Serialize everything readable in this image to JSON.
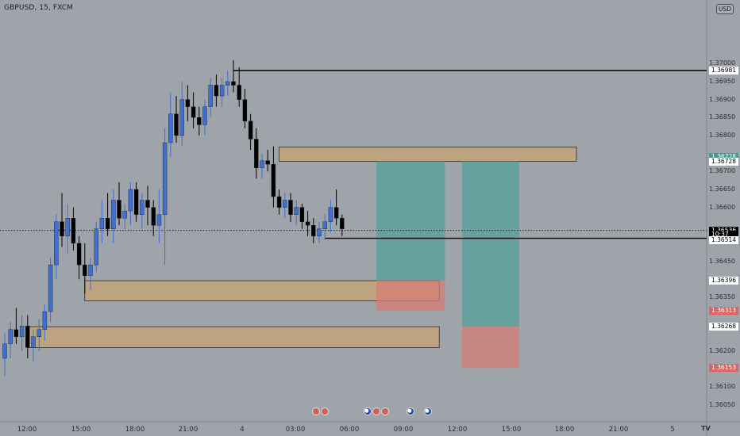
{
  "header": {
    "symbol": "GBPUSD, 15, FXCM",
    "currency": "USD"
  },
  "logo": "TV",
  "price_axis": {
    "labels": [
      "1.37000",
      "1.36950",
      "1.36900",
      "1.36850",
      "1.36800",
      "1.36700",
      "1.36650",
      "1.36600",
      "1.36450",
      "1.36350",
      "1.36200",
      "1.36100",
      "1.36050"
    ],
    "values": [
      1.37,
      1.3695,
      1.369,
      1.3685,
      1.368,
      1.367,
      1.3665,
      1.366,
      1.3645,
      1.3635,
      1.362,
      1.361,
      1.3605
    ]
  },
  "time_axis": {
    "labels": [
      "12:00",
      "15:00",
      "18:00",
      "21:00",
      "4",
      "03:00",
      "06:00",
      "09:00",
      "12:00",
      "15:00",
      "18:00",
      "21:00",
      "5"
    ]
  },
  "tags": [
    {
      "text": "1.36981",
      "style": "white",
      "price": 1.36981
    },
    {
      "text": "1.36728",
      "style": "teal",
      "price": 1.3674
    },
    {
      "text": "1.36728",
      "style": "white",
      "price": 1.36728
    },
    {
      "text": "1.36536",
      "style": "black",
      "price": 1.36536
    },
    {
      "text": "10:37",
      "style": "black",
      "price": 1.36525
    },
    {
      "text": "1.36514",
      "style": "white",
      "price": 1.36508
    },
    {
      "text": "1.36396",
      "style": "white",
      "price": 1.36396
    },
    {
      "text": "1.36313",
      "style": "red",
      "price": 1.36313
    },
    {
      "text": "1.36268",
      "style": "white",
      "price": 1.36268
    },
    {
      "text": "1.36153",
      "style": "red",
      "price": 1.36153
    }
  ],
  "events": [
    {
      "type": "red",
      "bar": 54.5
    },
    {
      "type": "red",
      "bar": 56
    },
    {
      "type": "us",
      "bar": 63.5
    },
    {
      "type": "red",
      "bar": 65
    },
    {
      "type": "red",
      "bar": 66.5
    },
    {
      "type": "us",
      "bar": 71
    },
    {
      "type": "us",
      "bar": 74
    }
  ],
  "colors": {
    "background": "#9fa4aa",
    "bull": "#3f6fd1",
    "bear": "#000000",
    "zone": "#c7a473",
    "long_tp": "#4f9f9a",
    "long_sl": "#d77a72"
  },
  "chart_data": {
    "type": "candlestick",
    "title": "GBPUSD, 15, FXCM",
    "ylim": [
      1.3603,
      1.3708
    ],
    "current_price": 1.36536,
    "candles": [
      [
        1.3618,
        1.3625,
        1.3613,
        1.3622
      ],
      [
        1.3622,
        1.3628,
        1.3618,
        1.3626
      ],
      [
        1.3626,
        1.3632,
        1.3622,
        1.3624
      ],
      [
        1.3624,
        1.363,
        1.362,
        1.3627
      ],
      [
        1.3627,
        1.363,
        1.3618,
        1.3621
      ],
      [
        1.3621,
        1.3626,
        1.3617,
        1.3624
      ],
      [
        1.3624,
        1.3629,
        1.362,
        1.3626
      ],
      [
        1.3626,
        1.3633,
        1.3623,
        1.3631
      ],
      [
        1.3631,
        1.3646,
        1.3628,
        1.3644
      ],
      [
        1.3644,
        1.3658,
        1.364,
        1.3656
      ],
      [
        1.3656,
        1.3664,
        1.3649,
        1.3652
      ],
      [
        1.3652,
        1.3661,
        1.3647,
        1.3657
      ],
      [
        1.3657,
        1.366,
        1.3648,
        1.365
      ],
      [
        1.365,
        1.3652,
        1.364,
        1.3644
      ],
      [
        1.3644,
        1.365,
        1.3636,
        1.3641
      ],
      [
        1.3641,
        1.3646,
        1.3637,
        1.3644
      ],
      [
        1.3644,
        1.3656,
        1.3642,
        1.3654
      ],
      [
        1.3654,
        1.3662,
        1.365,
        1.3657
      ],
      [
        1.3657,
        1.3664,
        1.3652,
        1.3654
      ],
      [
        1.3654,
        1.3665,
        1.365,
        1.3662
      ],
      [
        1.3662,
        1.3667,
        1.3655,
        1.3657
      ],
      [
        1.3657,
        1.3661,
        1.3654,
        1.3659
      ],
      [
        1.3659,
        1.3667,
        1.3655,
        1.3665
      ],
      [
        1.3665,
        1.3667,
        1.3656,
        1.3658
      ],
      [
        1.3658,
        1.3664,
        1.3654,
        1.3662
      ],
      [
        1.3662,
        1.3666,
        1.3655,
        1.366
      ],
      [
        1.366,
        1.3662,
        1.3652,
        1.3655
      ],
      [
        1.3655,
        1.3665,
        1.365,
        1.3658
      ],
      [
        1.3658,
        1.3682,
        1.3644,
        1.3678
      ],
      [
        1.3678,
        1.3692,
        1.3674,
        1.3686
      ],
      [
        1.3686,
        1.3691,
        1.3678,
        1.368
      ],
      [
        1.368,
        1.3695,
        1.3677,
        1.369
      ],
      [
        1.369,
        1.3694,
        1.3684,
        1.3688
      ],
      [
        1.3688,
        1.3692,
        1.3682,
        1.3685
      ],
      [
        1.3685,
        1.3688,
        1.368,
        1.3683
      ],
      [
        1.3683,
        1.369,
        1.368,
        1.3688
      ],
      [
        1.3688,
        1.3696,
        1.3685,
        1.3694
      ],
      [
        1.3694,
        1.3697,
        1.3688,
        1.3691
      ],
      [
        1.3691,
        1.3696,
        1.3688,
        1.3694
      ],
      [
        1.3694,
        1.3698,
        1.3691,
        1.3695
      ],
      [
        1.3695,
        1.3701,
        1.3692,
        1.3694
      ],
      [
        1.3694,
        1.3699,
        1.3688,
        1.369
      ],
      [
        1.369,
        1.3693,
        1.3682,
        1.3684
      ],
      [
        1.3684,
        1.3686,
        1.3676,
        1.3679
      ],
      [
        1.3679,
        1.3682,
        1.3668,
        1.3671
      ],
      [
        1.3671,
        1.3675,
        1.3668,
        1.3673
      ],
      [
        1.3673,
        1.3676,
        1.367,
        1.3672
      ],
      [
        1.3672,
        1.3677,
        1.366,
        1.3663
      ],
      [
        1.3663,
        1.3665,
        1.3658,
        1.366
      ],
      [
        1.366,
        1.3664,
        1.3657,
        1.3662
      ],
      [
        1.3662,
        1.3664,
        1.3656,
        1.3658
      ],
      [
        1.3658,
        1.3662,
        1.3655,
        1.366
      ],
      [
        1.366,
        1.3661,
        1.3654,
        1.3656
      ],
      [
        1.3656,
        1.3659,
        1.3652,
        1.3655
      ],
      [
        1.3655,
        1.3657,
        1.365,
        1.3652
      ],
      [
        1.3652,
        1.3656,
        1.365,
        1.3654
      ],
      [
        1.3654,
        1.3658,
        1.3651,
        1.3656
      ],
      [
        1.3656,
        1.3662,
        1.3653,
        1.366
      ],
      [
        1.366,
        1.3665,
        1.3655,
        1.3657
      ],
      [
        1.3657,
        1.3658,
        1.3652,
        1.3654
      ]
    ],
    "levels": [
      {
        "price": 1.36981,
        "from_bar": 40,
        "to_bar": 76
      },
      {
        "price": 1.36514,
        "from_bar": 56,
        "to_bar": 76
      }
    ],
    "zones": [
      {
        "top": 1.36768,
        "bottom": 1.36728,
        "from_bar": 48,
        "to_bar": 100
      },
      {
        "top": 1.36396,
        "bottom": 1.3634,
        "from_bar": 14,
        "to_bar": 76
      },
      {
        "top": 1.36268,
        "bottom": 1.3621,
        "from_bar": 4,
        "to_bar": 76
      }
    ],
    "positions": [
      {
        "tp_top": 1.36728,
        "entry": 1.36396,
        "sl_bottom": 1.36313,
        "from_bar": 65,
        "to_bar": 77
      },
      {
        "tp_top": 1.36728,
        "entry": 1.36268,
        "sl_bottom": 1.36153,
        "from_bar": 80,
        "to_bar": 90
      }
    ]
  }
}
